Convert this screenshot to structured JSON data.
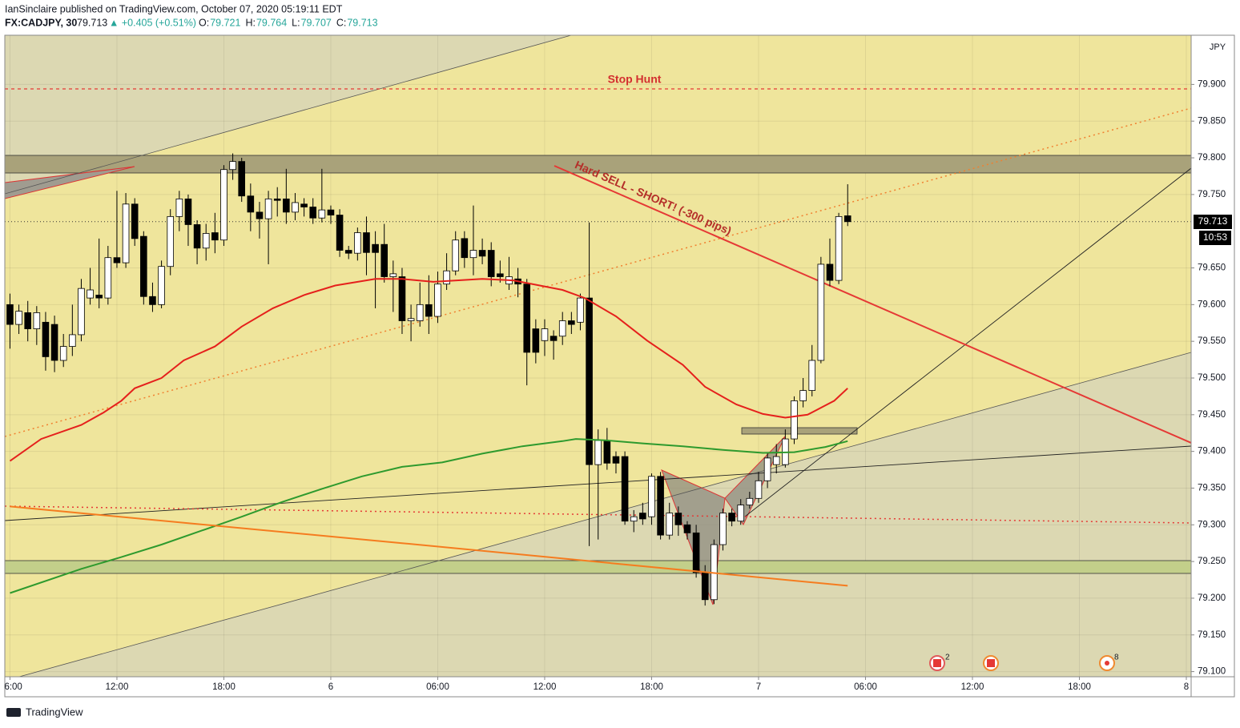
{
  "chart_data": {
    "type": "candlestick",
    "header": {
      "author_line": "IanSinclaire published on TradingView.com, October 07, 2020 05:19:11 EDT",
      "symbol": "FX:CADJPY, 30",
      "last": "79.713",
      "change": "▲ +0.405 (+0.51%)",
      "ohlc": [
        {
          "label": "O:",
          "value": "79.721"
        },
        {
          "label": "H:",
          "value": "79.764"
        },
        {
          "label": "L:",
          "value": "79.707"
        },
        {
          "label": "C:",
          "value": "79.713"
        }
      ]
    },
    "currency": "JPY",
    "last_price_label": "79.713",
    "countdown": "10:53",
    "annotations": [
      "Stop Hunt",
      "Hard SELL - SHORT! (-300 pips)"
    ],
    "event_badges": [
      "2",
      "8"
    ],
    "footer": "TradingView",
    "up_color": "#ffffff",
    "down_color": "#000000",
    "grid": true,
    "xlim": [
      -0.58,
      132.54
    ],
    "ylim": [
      79.093,
      79.967
    ],
    "xticks": [
      {
        "value": 0,
        "label": "6:00"
      },
      {
        "value": 12,
        "label": "12:00"
      },
      {
        "value": 24,
        "label": "18:00"
      },
      {
        "value": 36,
        "label": "6"
      },
      {
        "value": 48,
        "label": "06:00"
      },
      {
        "value": 60,
        "label": "12:00"
      },
      {
        "value": 72,
        "label": "18:00"
      },
      {
        "value": 84,
        "label": "7"
      },
      {
        "value": 96,
        "label": "06:00"
      },
      {
        "value": 108,
        "label": "12:00"
      },
      {
        "value": 120,
        "label": "18:00"
      },
      {
        "value": 132,
        "label": "8"
      }
    ],
    "yticks": [
      {
        "value": 79.1,
        "label": "79.100"
      },
      {
        "value": 79.15,
        "label": "79.150"
      },
      {
        "value": 79.2,
        "label": "79.200"
      },
      {
        "value": 79.25,
        "label": "79.250"
      },
      {
        "value": 79.3,
        "label": "79.300"
      },
      {
        "value": 79.35,
        "label": "79.350"
      },
      {
        "value": 79.4,
        "label": "79.400"
      },
      {
        "value": 79.45,
        "label": "79.450"
      },
      {
        "value": 79.5,
        "label": "79.500"
      },
      {
        "value": 79.55,
        "label": "79.550"
      },
      {
        "value": 79.6,
        "label": "79.600"
      },
      {
        "value": 79.65,
        "label": "79.650"
      },
      {
        "value": 79.75,
        "label": "79.750"
      },
      {
        "value": 79.8,
        "label": "79.800"
      },
      {
        "value": 79.85,
        "label": "79.850"
      },
      {
        "value": 79.9,
        "label": "79.900"
      }
    ],
    "open": [
      79.6,
      79.573,
      79.589,
      79.567,
      79.576,
      79.573,
      79.524,
      79.543,
      79.559,
      79.609,
      79.613,
      79.609,
      79.664,
      79.657,
      79.737,
      79.693,
      79.611,
      79.6,
      79.652,
      79.72,
      79.744,
      79.709,
      79.677,
      79.698,
      79.688,
      79.784,
      79.795,
      79.748,
      79.726,
      79.717,
      79.744,
      79.744,
      79.726,
      79.737,
      79.733,
      79.718,
      79.729,
      79.722,
      79.674,
      79.67,
      79.698,
      79.682,
      79.682,
      79.638,
      79.638,
      79.578,
      79.578,
      79.6,
      79.584,
      79.628,
      79.646,
      79.69,
      79.664,
      79.674,
      79.674,
      79.642,
      79.628,
      79.635,
      79.628,
      79.567,
      79.551,
      79.557,
      79.557,
      79.578,
      79.576,
      79.609,
      79.382,
      79.415,
      79.393,
      79.393,
      79.305,
      79.316,
      79.311,
      79.366,
      79.286,
      79.316,
      79.3,
      79.289,
      79.235,
      79.198,
      79.273,
      79.316,
      79.305,
      79.327,
      79.336,
      79.36,
      79.382,
      79.382,
      79.417,
      79.469,
      79.483,
      79.524,
      79.655,
      79.633,
      79.721
    ],
    "high": [
      79.615,
      79.6,
      79.605,
      79.598,
      79.59,
      79.585,
      79.56,
      79.6,
      79.635,
      79.65,
      79.69,
      79.68,
      79.755,
      79.752,
      79.745,
      79.7,
      79.63,
      79.66,
      79.73,
      79.755,
      79.75,
      79.715,
      79.71,
      79.725,
      79.79,
      79.806,
      79.8,
      79.765,
      79.74,
      79.755,
      79.76,
      79.785,
      79.752,
      79.745,
      79.745,
      79.785,
      79.735,
      79.73,
      79.68,
      79.705,
      79.72,
      79.7,
      79.71,
      79.66,
      79.65,
      79.6,
      79.63,
      79.64,
      79.645,
      79.67,
      79.7,
      79.7,
      79.735,
      79.69,
      79.685,
      79.66,
      79.665,
      79.65,
      79.635,
      79.58,
      79.58,
      79.565,
      79.59,
      79.59,
      79.615,
      79.712,
      79.43,
      79.432,
      79.4,
      79.4,
      79.32,
      79.33,
      79.37,
      79.372,
      79.33,
      79.325,
      79.305,
      79.3,
      79.245,
      79.28,
      79.322,
      79.322,
      79.335,
      79.345,
      79.372,
      79.398,
      79.41,
      79.43,
      79.475,
      79.5,
      79.545,
      79.665,
      79.69,
      79.725,
      79.764
    ],
    "low": [
      79.54,
      79.56,
      79.55,
      79.545,
      79.51,
      79.508,
      79.515,
      79.53,
      79.55,
      79.6,
      79.595,
      79.6,
      79.65,
      79.65,
      79.68,
      79.6,
      79.59,
      79.595,
      79.64,
      79.7,
      79.68,
      79.655,
      79.66,
      79.67,
      79.68,
      79.77,
      79.74,
      79.7,
      79.69,
      79.655,
      79.72,
      79.71,
      79.715,
      79.72,
      79.71,
      79.712,
      79.71,
      79.665,
      79.662,
      79.66,
      79.64,
      79.595,
      79.63,
      79.59,
      79.56,
      79.55,
      79.57,
      79.56,
      79.575,
      79.62,
      79.64,
      79.65,
      79.64,
      79.655,
      79.625,
      79.63,
      79.62,
      79.61,
      79.49,
      79.52,
      79.53,
      79.525,
      79.545,
      79.56,
      79.565,
      79.271,
      79.28,
      79.375,
      79.37,
      79.3,
      79.29,
      79.3,
      79.3,
      79.28,
      79.28,
      79.285,
      79.28,
      79.228,
      79.19,
      79.192,
      79.265,
      79.298,
      79.3,
      79.322,
      79.33,
      79.35,
      79.37,
      79.378,
      79.41,
      79.46,
      79.475,
      79.52,
      79.625,
      79.628,
      79.707
    ],
    "close": [
      79.573,
      79.591,
      79.567,
      79.589,
      79.529,
      79.524,
      79.543,
      79.559,
      79.622,
      79.62,
      79.609,
      79.664,
      79.657,
      79.737,
      79.69,
      79.611,
      79.6,
      79.652,
      79.72,
      79.744,
      79.709,
      79.677,
      79.697,
      79.688,
      79.784,
      79.795,
      79.748,
      79.726,
      79.717,
      79.744,
      79.742,
      79.726,
      79.739,
      79.733,
      79.718,
      79.729,
      79.722,
      79.674,
      79.67,
      79.698,
      79.671,
      79.671,
      79.638,
      79.642,
      79.578,
      79.581,
      79.6,
      79.584,
      79.628,
      79.646,
      79.688,
      79.664,
      79.674,
      79.666,
      79.638,
      79.638,
      79.638,
      79.628,
      79.535,
      79.535,
      79.567,
      79.551,
      79.578,
      79.573,
      79.609,
      79.382,
      79.415,
      79.384,
      79.384,
      79.305,
      79.311,
      79.308,
      79.366,
      79.286,
      79.316,
      79.3,
      79.289,
      79.235,
      79.198,
      79.273,
      79.316,
      79.305,
      79.327,
      79.336,
      79.36,
      79.391,
      79.393,
      79.417,
      79.469,
      79.483,
      79.524,
      79.655,
      79.633,
      79.72,
      79.713
    ],
    "series": [
      {
        "color": "#e5201c",
        "x": [
          0,
          3.5,
          8,
          10.5,
          12.5,
          14,
          17,
          19.5,
          23,
          26,
          29.5,
          33,
          36.5,
          41,
          44,
          47.5,
          53,
          56.5,
          62,
          64.5,
          68,
          71.5,
          75.5,
          78,
          81.5,
          84.5,
          87,
          89.5,
          92.5,
          94
        ],
        "values": [
          79.387,
          79.417,
          79.436,
          79.453,
          79.469,
          79.486,
          79.5,
          79.524,
          79.543,
          79.57,
          79.595,
          79.613,
          79.626,
          79.635,
          79.635,
          79.631,
          79.635,
          79.633,
          79.62,
          79.609,
          79.584,
          79.551,
          79.518,
          79.488,
          79.464,
          79.451,
          79.446,
          79.45,
          79.469,
          79.486
        ]
      },
      {
        "color": "#2e9a2e",
        "x": [
          0,
          8,
          12.5,
          17,
          21.5,
          26,
          30.5,
          35,
          39.5,
          44,
          48.5,
          53,
          57.5,
          62,
          63.5,
          67,
          71,
          75.5,
          80,
          84.5,
          88,
          91.5,
          94
        ],
        "values": [
          79.207,
          79.24,
          79.256,
          79.273,
          79.292,
          79.311,
          79.331,
          79.349,
          79.366,
          79.379,
          79.385,
          79.397,
          79.407,
          79.414,
          79.417,
          79.415,
          79.411,
          79.407,
          79.402,
          79.398,
          79.399,
          79.406,
          79.414
        ]
      },
      {
        "color": "#f57c1f",
        "x": [
          0,
          44,
          94
        ],
        "values": [
          79.325,
          79.275,
          79.217
        ]
      }
    ]
  }
}
